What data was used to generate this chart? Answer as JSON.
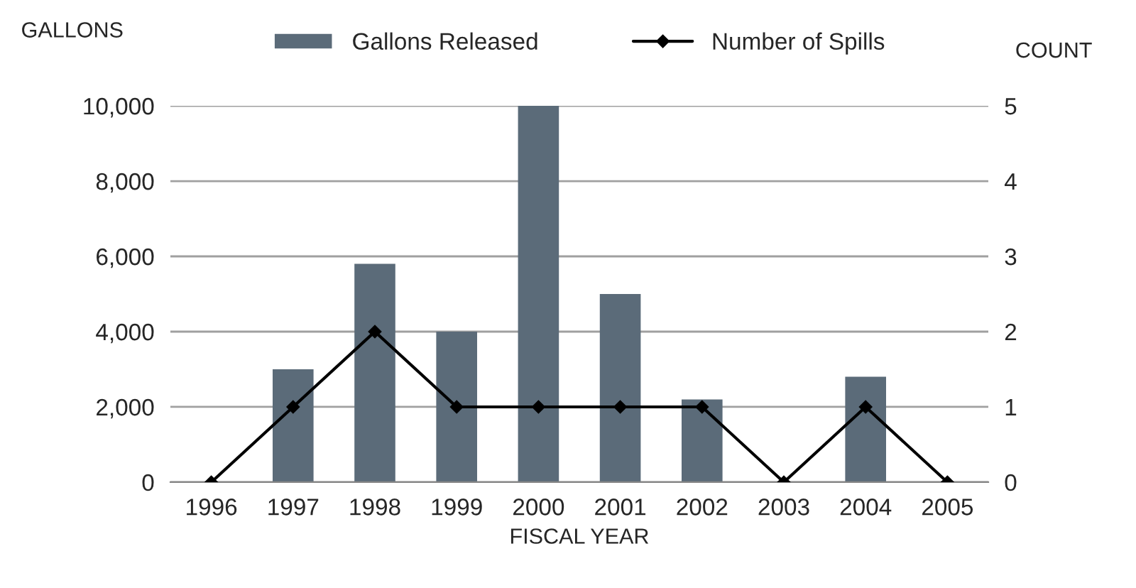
{
  "chart_data": {
    "type": "bar",
    "xlabel": "FISCAL YEAR",
    "ylabel": "GALLONS",
    "y2label": "COUNT",
    "categories": [
      "1996",
      "1997",
      "1998",
      "1999",
      "2000",
      "2001",
      "2002",
      "2003",
      "2004",
      "2005"
    ],
    "series": [
      {
        "name": "Gallons Released",
        "color": "#5b6b79",
        "values": [
          0,
          3000,
          5800,
          4000,
          10000,
          5000,
          2200,
          0,
          2800,
          0
        ]
      },
      {
        "name": "Number of Spills",
        "type": "line",
        "axis": "y2",
        "color": "#000000",
        "marker": "diamond",
        "line_style": "solid",
        "values": [
          0,
          1,
          2,
          1,
          1,
          1,
          1,
          0,
          1,
          0
        ]
      }
    ],
    "ylim": [
      0,
      10000
    ],
    "yticks": [
      {
        "value": 0,
        "label": "0"
      },
      {
        "value": 2000,
        "label": "2,000"
      },
      {
        "value": 4000,
        "label": "4,000"
      },
      {
        "value": 6000,
        "label": "6,000"
      },
      {
        "value": 8000,
        "label": "8,000"
      },
      {
        "value": 10000,
        "label": "10,000"
      }
    ],
    "y2lim": [
      0,
      5
    ],
    "y2ticks": [
      0,
      1,
      2,
      3,
      4,
      5
    ],
    "grid": "y",
    "legend": "top"
  }
}
